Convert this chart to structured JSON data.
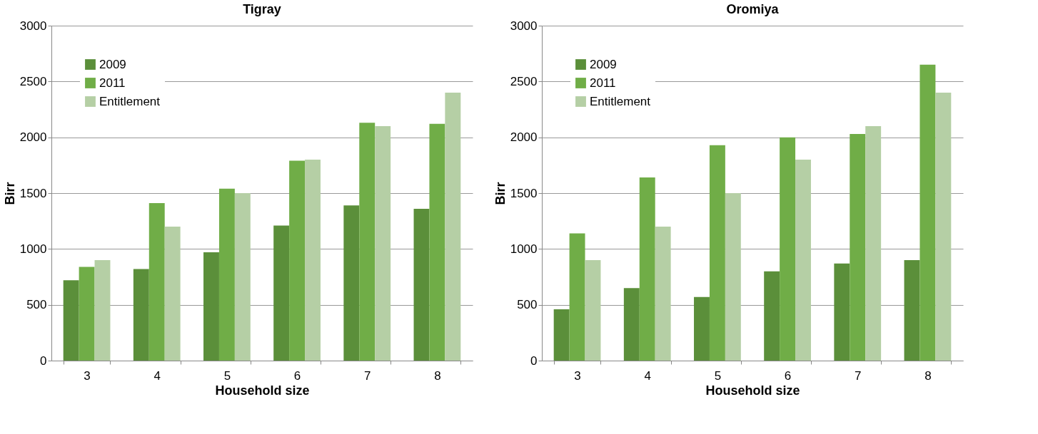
{
  "chart_data": [
    {
      "type": "bar",
      "title": "Tigray",
      "xlabel": "Household size",
      "ylabel": "Birr",
      "categories": [
        "3",
        "4",
        "5",
        "6",
        "7",
        "8"
      ],
      "ylim": [
        0,
        3000
      ],
      "yticks": [
        0,
        500,
        1000,
        1500,
        2000,
        2500,
        3000
      ],
      "grid": "y",
      "legend": "top left",
      "series": [
        {
          "name": "2009",
          "color": "#5b8f3a",
          "values": [
            720,
            820,
            970,
            1210,
            1390,
            1360
          ]
        },
        {
          "name": "2011",
          "color": "#70ad47",
          "values": [
            840,
            1410,
            1540,
            1790,
            2130,
            2120
          ]
        },
        {
          "name": "Entitlement",
          "color": "#b5cfa5",
          "values": [
            900,
            1200,
            1500,
            1800,
            2100,
            2400
          ]
        }
      ]
    },
    {
      "type": "bar",
      "title": "Oromiya",
      "xlabel": "Household size",
      "ylabel": "Birr",
      "categories": [
        "3",
        "4",
        "5",
        "6",
        "7",
        "8"
      ],
      "ylim": [
        0,
        3000
      ],
      "yticks": [
        0,
        500,
        1000,
        1500,
        2000,
        2500,
        3000
      ],
      "grid": "y",
      "legend": "top left",
      "series": [
        {
          "name": "2009",
          "color": "#5b8f3a",
          "values": [
            460,
            650,
            570,
            800,
            870,
            900
          ]
        },
        {
          "name": "2011",
          "color": "#70ad47",
          "values": [
            1140,
            1640,
            1930,
            2000,
            2030,
            2650
          ]
        },
        {
          "name": "Entitlement",
          "color": "#b5cfa5",
          "values": [
            900,
            1200,
            1500,
            1800,
            2100,
            2400
          ]
        }
      ]
    }
  ]
}
